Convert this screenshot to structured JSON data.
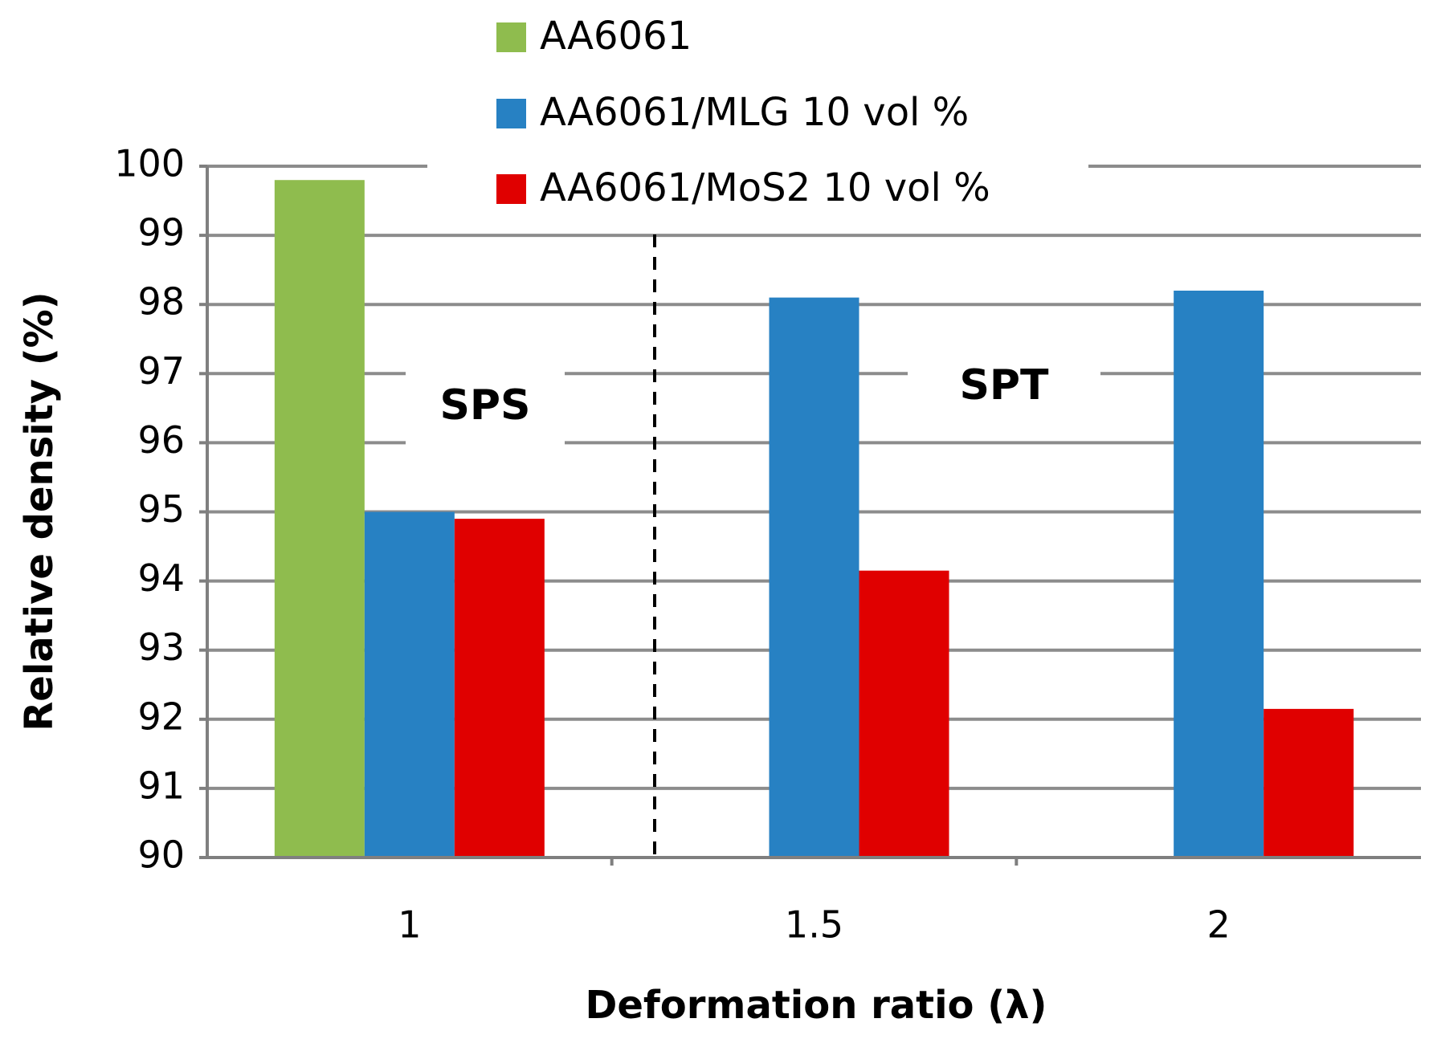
{
  "chart_data": {
    "type": "bar",
    "title": "",
    "xlabel": "Deformation ratio (λ)",
    "ylabel": "Relative density (%)",
    "ylim": [
      90,
      100
    ],
    "y_ticks": [
      "90",
      "91",
      "92",
      "93",
      "94",
      "95",
      "96",
      "97",
      "98",
      "99",
      "100"
    ],
    "categories": [
      "1",
      "1.5",
      "2"
    ],
    "series": [
      {
        "name": "AA6061",
        "color": "#8fbc4e",
        "values": [
          99.8,
          null,
          null
        ]
      },
      {
        "name": "AA6061/MLG 10 vol %",
        "color": "#2781c3",
        "values": [
          95.0,
          98.1,
          98.2
        ]
      },
      {
        "name": "AA6061/MoS2 10 vol %",
        "color": "#e00000",
        "values": [
          94.9,
          94.15,
          92.15
        ]
      }
    ],
    "grid": true,
    "legend_position": "top-center",
    "annotations": [
      {
        "text": "SPS",
        "region": "left"
      },
      {
        "text": "SPT",
        "region": "right"
      }
    ],
    "divider": "dashed vertical line between 1 and 1.5"
  }
}
